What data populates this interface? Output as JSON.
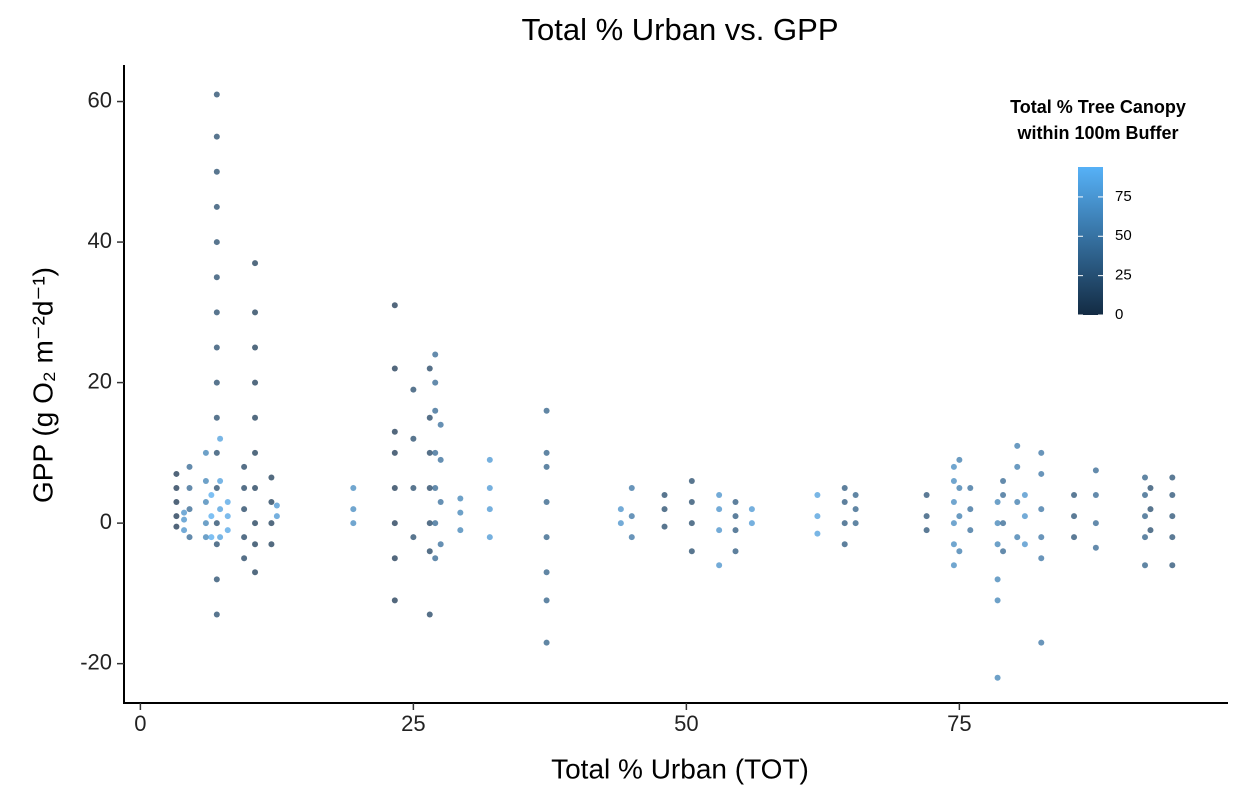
{
  "chart_data": {
    "type": "scatter",
    "title": "Total % Urban vs. GPP",
    "x_label": "Total % Urban (TOT)",
    "y_label": "GPP (g O₂ m⁻²d⁻¹)",
    "legend_title": [
      "Total % Tree Canopy",
      "within 100m Buffer"
    ],
    "xlim": [
      -1.5,
      99.6
    ],
    "xticks": [
      0,
      25,
      50,
      75
    ],
    "ylim": [
      -25.6,
      65.2
    ],
    "yticks": [
      -20,
      0,
      20,
      40,
      60
    ],
    "colorscale": {
      "low": "#132B43",
      "high": "#56B1F7",
      "lim": [
        0,
        94
      ],
      "ticks": [
        0,
        25,
        50,
        75
      ]
    },
    "grid": false,
    "x": [
      3.3,
      3.3,
      3.3,
      3.3,
      3.3,
      4.0,
      4.0,
      4.0,
      4.5,
      4.5,
      4.5,
      4.5,
      6.0,
      6.0,
      6.0,
      6.0,
      6.0,
      6.5,
      6.5,
      6.5,
      7.0,
      7.0,
      7.0,
      7.0,
      7.0,
      7.0,
      7.0,
      7.0,
      7.0,
      7.0,
      7.0,
      7.0,
      7.0,
      7.0,
      7.0,
      7.0,
      7.3,
      7.3,
      7.3,
      7.3,
      8.0,
      8.0,
      8.0,
      9.5,
      9.5,
      9.5,
      9.5,
      9.5,
      10.5,
      10.5,
      10.5,
      10.5,
      10.5,
      10.5,
      10.5,
      10.5,
      10.5,
      10.5,
      12.0,
      12.0,
      12.0,
      12.0,
      12.5,
      12.5,
      19.5,
      19.5,
      19.5,
      23.3,
      23.3,
      23.3,
      23.3,
      23.3,
      23.3,
      23.3,
      23.3,
      25,
      25,
      25,
      25,
      26.5,
      26.5,
      26.5,
      26.5,
      26.5,
      26.5,
      26.5,
      27,
      27,
      27,
      27,
      27,
      27,
      27,
      27.5,
      27.5,
      27.5,
      27.5,
      29.3,
      29.3,
      29.3,
      32,
      32,
      32,
      32,
      37.2,
      37.2,
      37.2,
      37.2,
      37.2,
      37.2,
      37.2,
      37.2,
      44,
      44,
      45,
      45,
      45,
      48,
      48,
      48,
      50.5,
      50.5,
      50.5,
      50.5,
      53,
      53,
      53,
      53,
      54.5,
      54.5,
      54.5,
      54.5,
      56,
      56,
      62,
      62,
      62,
      64.5,
      64.5,
      64.5,
      64.5,
      65.5,
      65.5,
      65.5,
      72,
      72,
      72,
      74.5,
      74.5,
      74.5,
      74.5,
      74.5,
      74.5,
      75,
      75,
      75,
      75,
      76,
      76,
      76,
      78.5,
      78.5,
      78.5,
      78.5,
      78.5,
      78.5,
      79,
      79,
      79,
      79,
      80.3,
      80.3,
      80.3,
      80.3,
      81,
      81,
      81,
      82.5,
      82.5,
      82.5,
      82.5,
      82.5,
      82.5,
      85.5,
      85.5,
      85.5,
      87.5,
      87.5,
      87.5,
      87.5,
      92,
      92,
      92,
      92,
      92,
      92.5,
      92.5,
      92.5,
      94.5,
      94.5,
      94.5,
      94.5,
      94.5
    ],
    "values": [
      -0.5,
      1,
      3,
      5,
      7,
      -1,
      0.5,
      1.5,
      -2,
      2,
      5,
      8,
      -2,
      0,
      3,
      6,
      10,
      -2,
      1,
      4,
      -13,
      -8,
      -3,
      0,
      5,
      10,
      15,
      20,
      25,
      30,
      35,
      40,
      45,
      50,
      55,
      61,
      -2,
      2,
      6,
      12,
      -1,
      1,
      3,
      -5,
      -2,
      2,
      5,
      8,
      -7,
      -3,
      0,
      5,
      10,
      15,
      20,
      25,
      30,
      37,
      -3,
      0,
      3,
      6.5,
      1,
      2.5,
      0,
      2,
      5,
      -11,
      -5,
      0,
      5,
      10,
      13,
      22,
      31,
      -2,
      5,
      12,
      19,
      -13,
      -4,
      0,
      5,
      10,
      15,
      22,
      -5,
      0,
      5,
      10,
      16,
      20,
      24,
      -3,
      3,
      9,
      14,
      -1,
      1.5,
      3.5,
      -2,
      2,
      5,
      9,
      -17,
      -11,
      -7,
      -2,
      3,
      8,
      10,
      16,
      0,
      2,
      -2,
      1,
      5,
      -0.5,
      2,
      4,
      -4,
      0,
      3,
      6,
      -6,
      -1,
      2,
      4,
      -4,
      -1,
      1,
      3,
      0,
      2,
      -1.5,
      1,
      4,
      -3,
      0,
      3,
      5,
      0,
      2,
      4,
      -1,
      1,
      4,
      -6,
      -3,
      0,
      3,
      6,
      8,
      -4,
      1,
      5,
      9,
      -1,
      2,
      5,
      -22,
      -11,
      -8,
      -3,
      0,
      3,
      -4,
      0,
      4,
      6,
      -2,
      3,
      8,
      11,
      -3,
      1,
      4,
      -17,
      -5,
      -2,
      2,
      7,
      10,
      -2,
      1,
      4,
      -3.5,
      0,
      4,
      7.5,
      -6,
      -2,
      1,
      4,
      6.5,
      -1,
      2,
      5,
      -6,
      -2,
      1,
      4,
      6.5
    ],
    "color_values": [
      5,
      5,
      5,
      5,
      5,
      70,
      70,
      70,
      40,
      40,
      40,
      40,
      60,
      60,
      60,
      60,
      60,
      90,
      90,
      90,
      20,
      20,
      20,
      20,
      20,
      20,
      20,
      20,
      20,
      20,
      20,
      20,
      20,
      20,
      20,
      20,
      80,
      80,
      80,
      80,
      85,
      85,
      85,
      15,
      15,
      15,
      15,
      15,
      10,
      10,
      10,
      10,
      10,
      10,
      10,
      10,
      10,
      10,
      10,
      10,
      10,
      10,
      75,
      75,
      65,
      65,
      65,
      8,
      8,
      8,
      8,
      8,
      8,
      8,
      8,
      20,
      20,
      20,
      20,
      15,
      15,
      15,
      15,
      15,
      15,
      15,
      40,
      40,
      40,
      40,
      40,
      40,
      40,
      45,
      45,
      45,
      45,
      60,
      60,
      60,
      75,
      75,
      75,
      75,
      35,
      35,
      35,
      35,
      35,
      35,
      35,
      35,
      70,
      70,
      50,
      50,
      50,
      20,
      20,
      20,
      20,
      20,
      20,
      20,
      70,
      70,
      70,
      70,
      30,
      30,
      30,
      30,
      75,
      75,
      80,
      80,
      80,
      30,
      30,
      30,
      30,
      35,
      35,
      35,
      25,
      25,
      25,
      65,
      65,
      65,
      65,
      65,
      65,
      55,
      55,
      55,
      55,
      45,
      45,
      45,
      60,
      60,
      60,
      60,
      60,
      60,
      40,
      40,
      40,
      40,
      55,
      55,
      55,
      55,
      70,
      70,
      70,
      50,
      50,
      50,
      50,
      50,
      50,
      25,
      25,
      25,
      40,
      40,
      40,
      40,
      35,
      35,
      35,
      35,
      35,
      20,
      20,
      20,
      25,
      25,
      25,
      25,
      25
    ]
  }
}
